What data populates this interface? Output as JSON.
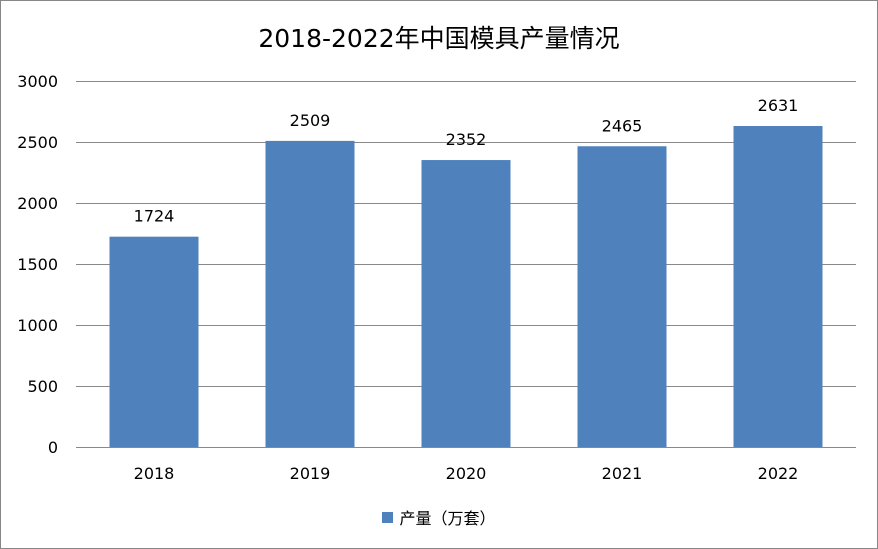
{
  "chart_data": {
    "type": "bar",
    "title": "2018-2022年中国模具产量情况",
    "categories": [
      "2018",
      "2019",
      "2020",
      "2021",
      "2022"
    ],
    "series": [
      {
        "name": "产量（万套）",
        "values": [
          1724,
          2509,
          2352,
          2465,
          2631
        ],
        "color": "#4F81BD"
      }
    ],
    "data_labels": [
      "1724",
      "2509",
      "2352",
      "2465",
      "2631"
    ],
    "ylim": [
      0,
      3000
    ],
    "yticks": [
      0,
      500,
      1000,
      1500,
      2000,
      2500,
      3000
    ],
    "grid": true,
    "legend_position": "bottom",
    "gridline_color": "#898989",
    "xlabel": "",
    "ylabel": ""
  }
}
